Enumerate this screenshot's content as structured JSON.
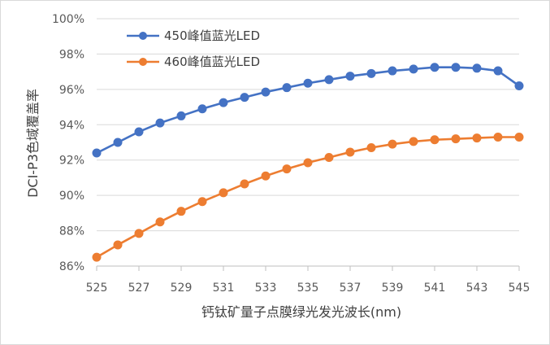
{
  "chart_data": {
    "type": "line",
    "title": "",
    "xlabel": "钙钛矿量子点膜绿光发光波长(nm)",
    "ylabel": "DCI-P3色域覆盖率",
    "xlim": [
      525,
      545
    ],
    "ylim": [
      86,
      100
    ],
    "x_ticks": [
      525,
      527,
      529,
      531,
      533,
      535,
      537,
      539,
      541,
      543,
      545
    ],
    "y_ticks": [
      86,
      88,
      90,
      92,
      94,
      96,
      98,
      100
    ],
    "y_tick_suffix": "%",
    "grid": "horizontal",
    "legend_position": "top-left",
    "x": [
      525,
      526,
      527,
      528,
      529,
      530,
      531,
      532,
      533,
      534,
      535,
      536,
      537,
      538,
      539,
      540,
      541,
      542,
      543,
      544,
      545
    ],
    "series": [
      {
        "name": "450峰值蓝光LED",
        "color": "#4472c4",
        "values": [
          92.4,
          93.0,
          93.6,
          94.1,
          94.5,
          94.9,
          95.25,
          95.55,
          95.85,
          96.1,
          96.35,
          96.55,
          96.75,
          96.9,
          97.05,
          97.15,
          97.25,
          97.25,
          97.2,
          97.05,
          96.2
        ]
      },
      {
        "name": "460峰值蓝光LED",
        "color": "#ed7d31",
        "values": [
          86.5,
          87.2,
          87.85,
          88.5,
          89.1,
          89.65,
          90.15,
          90.65,
          91.1,
          91.5,
          91.85,
          92.15,
          92.45,
          92.7,
          92.9,
          93.05,
          93.15,
          93.2,
          93.25,
          93.3,
          93.3
        ]
      }
    ],
    "gridline_color": "#d9d9d9",
    "axis_color": "#bfbfbf"
  }
}
